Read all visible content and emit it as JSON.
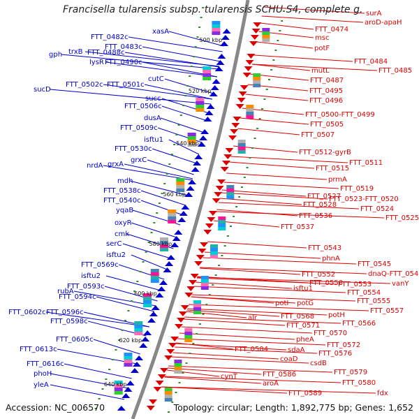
{
  "title": "Francisella tularensis subsp. tularensis SCHU S4, complete g...",
  "footer": {
    "accession": "Accession: NC_006570",
    "summary": "Topology: circular; Length: 1,892,775 bp; Genes: 1,652"
  },
  "colors": {
    "forward": "#0000cc",
    "reverse": "#dd0000",
    "backbone": "#888888",
    "tick": "#2e8b2e"
  },
  "scale_labels": [
    "500 kbp",
    "520 kbp",
    "540 kbp",
    "560 kbp",
    "580 kbp",
    "600 kbp",
    "620 kbp",
    "640 kbp"
  ],
  "forward_labels": [
    "xasA",
    "FTT_0482c",
    "FTT_0483c",
    "gph",
    "trxB",
    "FTT_0488c",
    "lysR",
    "FTT_0490c",
    "cutC",
    "sucD",
    "FTT_0502c",
    "FTT_0501c",
    "succ",
    "FTT_0506c",
    "dusA",
    "FTT_0509c",
    "isftu1",
    "FTT_0530c",
    "grxC",
    "nrdA",
    "grxA",
    "mdh",
    "FTT_0538c",
    "FTT_0540c",
    "yqaB",
    "oxyR",
    "cmk",
    "serC",
    "isftu2",
    "FTT_0569c",
    "isftu2",
    "rubA",
    "FTT_0593c",
    "FTT_0594c",
    "FTT_0602c",
    "FTT_0596c",
    "FTT_0598c",
    "FTT_0605c",
    "FTT_0613c",
    "FTT_0616c",
    "phoH",
    "yleA"
  ],
  "reverse_labels": [
    "surA",
    "aroD-apaH",
    "FTT_0474",
    "msc",
    "potF",
    "FTT_0484",
    "mutL",
    "FTT_0485",
    "FTT_0487",
    "FTT_0495",
    "FTT_0496",
    "FTT_0500-FTT_0499",
    "FTT_0505",
    "FTT_0507",
    "FTT_0512-gyrB",
    "FTT_0511",
    "FTT_0515",
    "prmA",
    "FTT_0519",
    "FTT_0527",
    "FTT_0523-FTT_0520",
    "FTT_0528",
    "FTT_0524",
    "FTT_0536",
    "FTT_0525",
    "FTT_0537",
    "FTT_0543",
    "phnA",
    "FTT_0545",
    "dnaQ-FTT_0546",
    "FTT_0552",
    "FTT_0558",
    "FTT_0553",
    "vanY",
    "isftu1",
    "FTT_0554",
    "potI",
    "potG",
    "FTT_0555",
    "FTT_0557",
    "potH",
    "alr",
    "FTT_0568",
    "FTT_0566",
    "FTT_0571",
    "FTT_0570",
    "pheA",
    "FTT_0572",
    "FTT_0584",
    "sdaA",
    "FTT_0576",
    "coaD",
    "csdB",
    "FTT_0579",
    "cynT",
    "FTT_0586",
    "FTT_0580",
    "aroA",
    "FTT_0589",
    "fdx"
  ]
}
